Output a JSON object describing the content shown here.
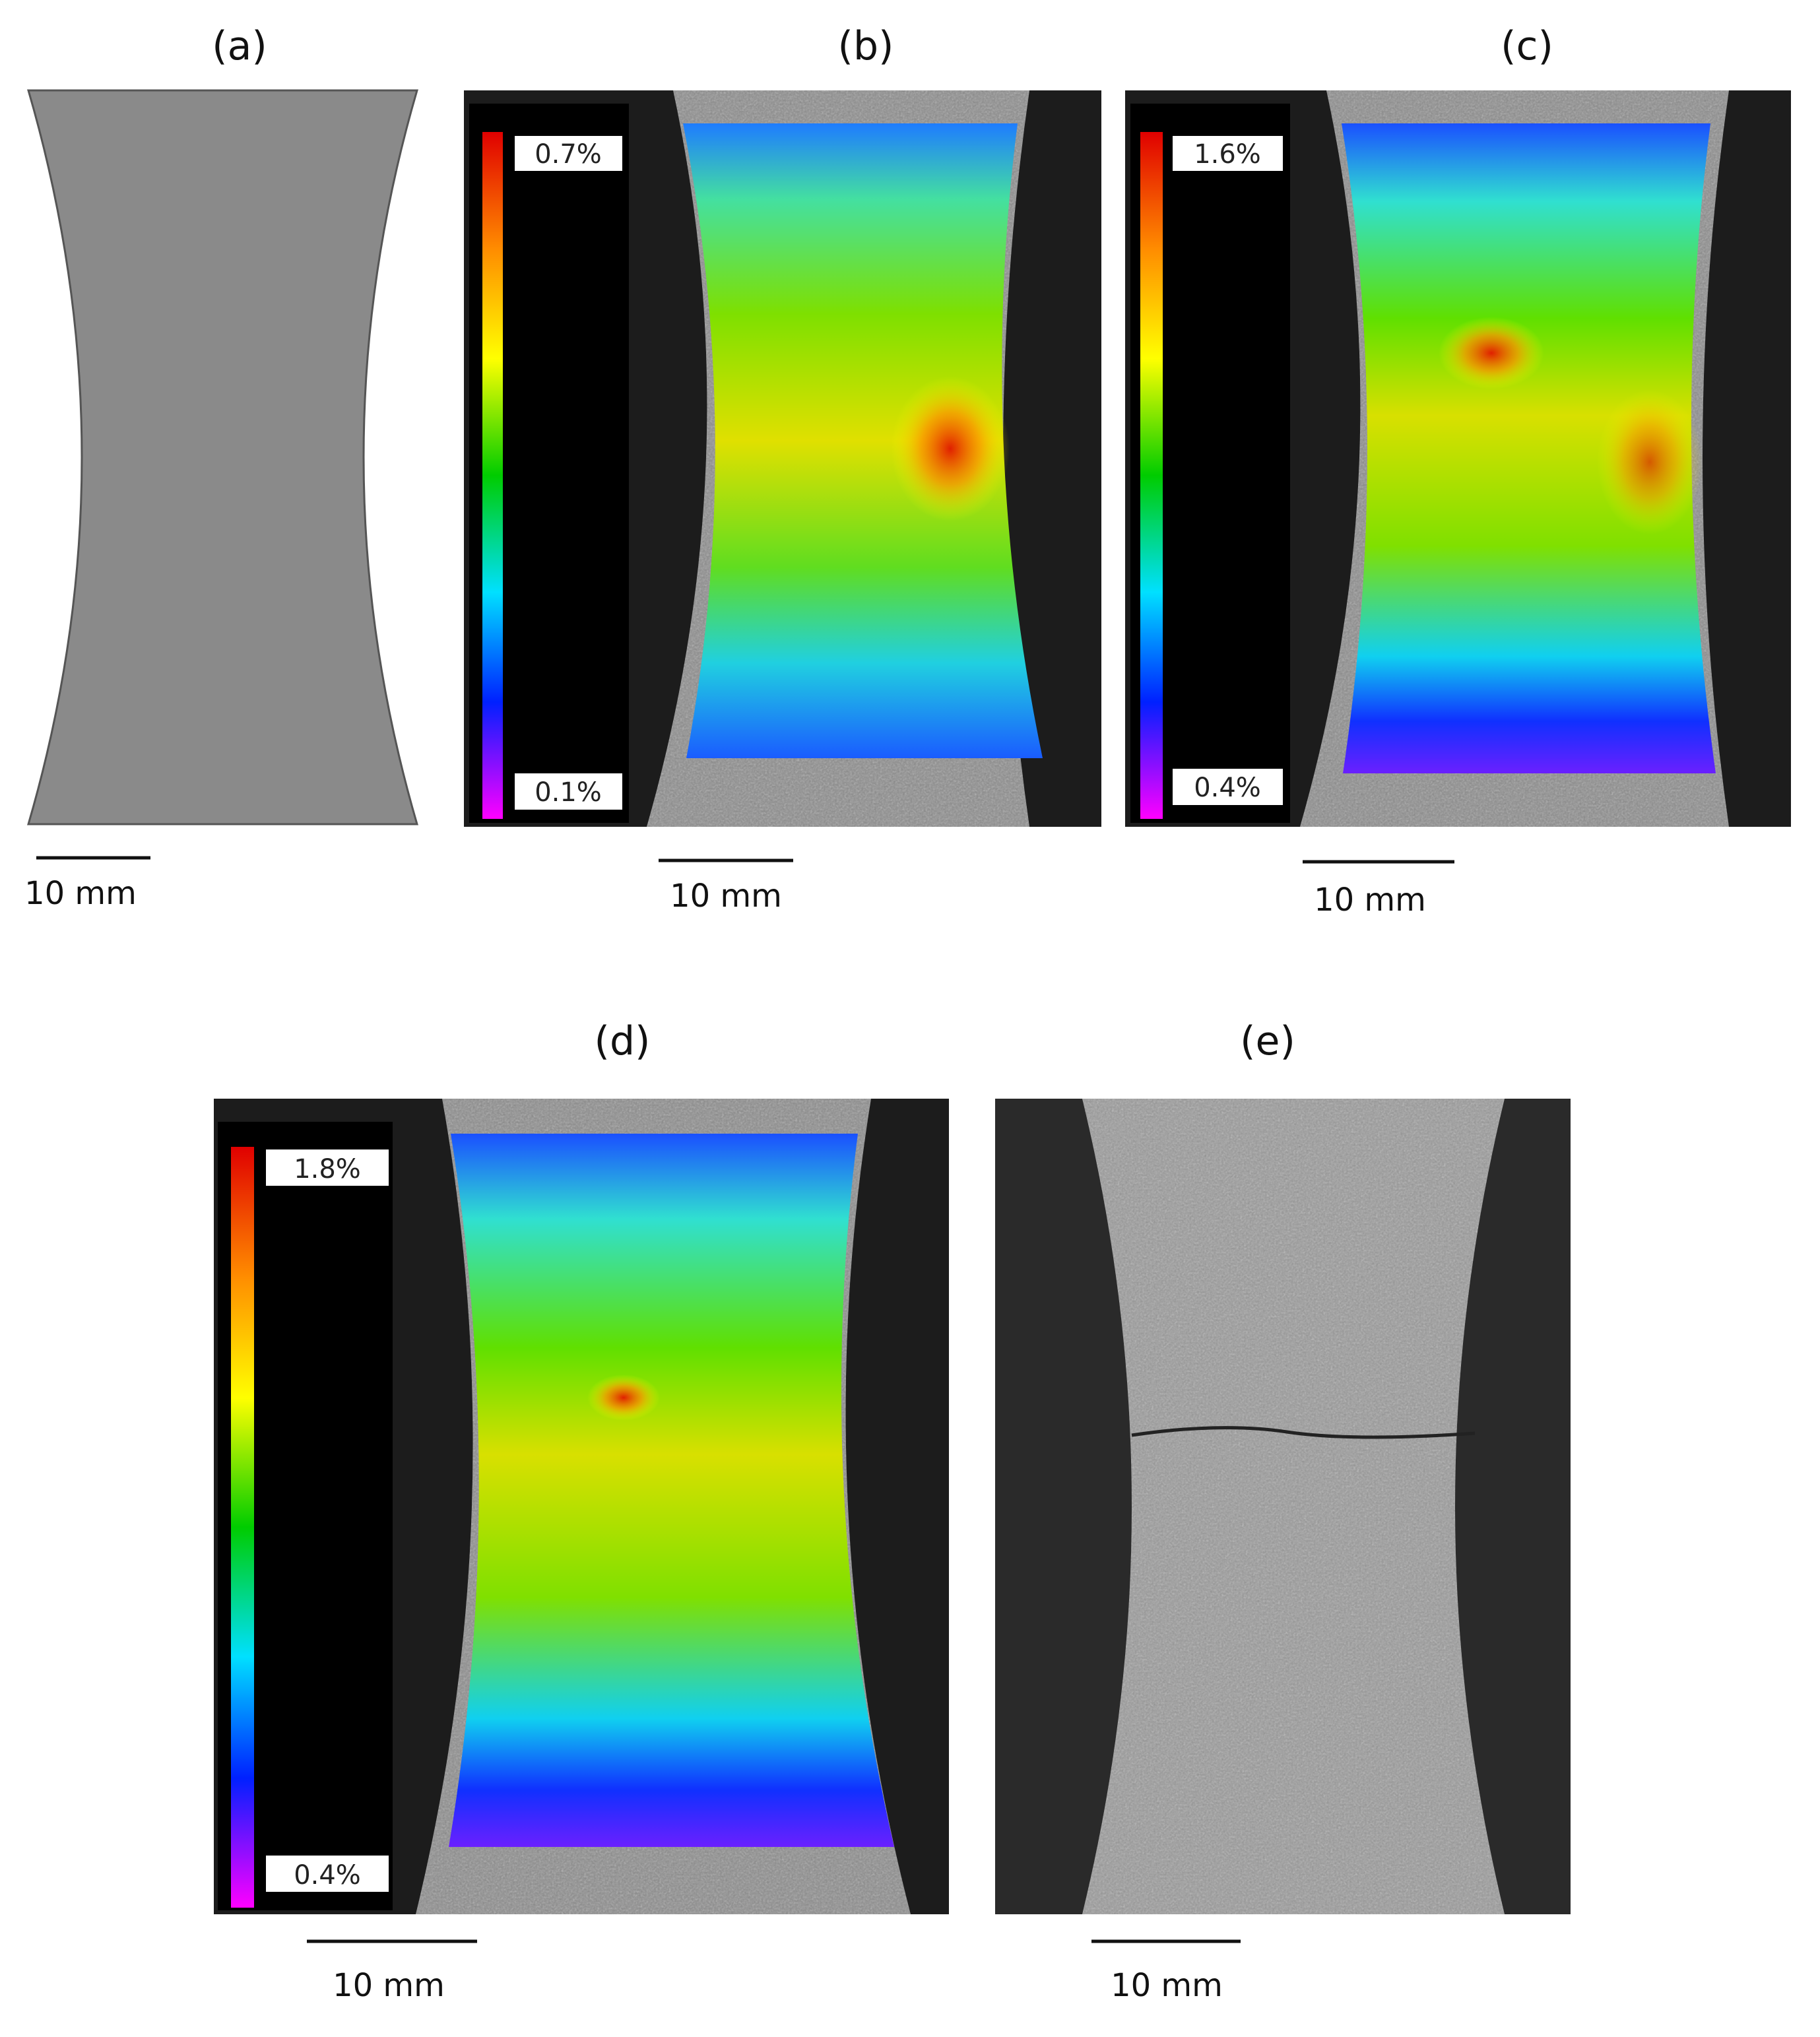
{
  "panels": [
    {
      "label": "(a)",
      "scale_bar": "10 mm"
    },
    {
      "label": "(b)",
      "scale_bar": "10 mm",
      "colorbar": {
        "max": "0.7%",
        "min": "0.1%"
      }
    },
    {
      "label": "(c)",
      "scale_bar": "10 mm",
      "colorbar": {
        "max": "1.6%",
        "min": "0.4%"
      }
    },
    {
      "label": "(d)",
      "scale_bar": "10 mm",
      "colorbar": {
        "max": "1.8%",
        "min": "0.4%"
      }
    },
    {
      "label": "(e)",
      "scale_bar": "10 mm"
    }
  ]
}
